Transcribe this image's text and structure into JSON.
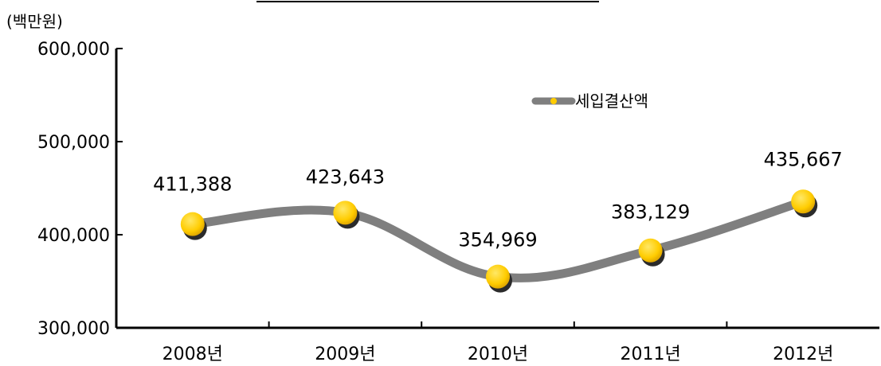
{
  "chart_data": {
    "type": "line",
    "unit_label": "(백만원)",
    "categories": [
      "2008년",
      "2009년",
      "2010년",
      "2011년",
      "2012년"
    ],
    "series": [
      {
        "name": "세입결산액",
        "values": [
          411388,
          423643,
          354969,
          383129,
          435667
        ],
        "value_labels": [
          "411,388",
          "423,643",
          "354,969",
          "383,129",
          "435,667"
        ],
        "line_color": "#7f7f7f",
        "marker_color": "#ffcc00"
      }
    ],
    "ylim": [
      300000,
      600000
    ],
    "yticks": [
      300000,
      400000,
      500000,
      600000
    ],
    "ytick_labels": [
      "300,000",
      "400,000",
      "500,000",
      "600,000"
    ],
    "grid": false,
    "legend_position": "top-right"
  }
}
